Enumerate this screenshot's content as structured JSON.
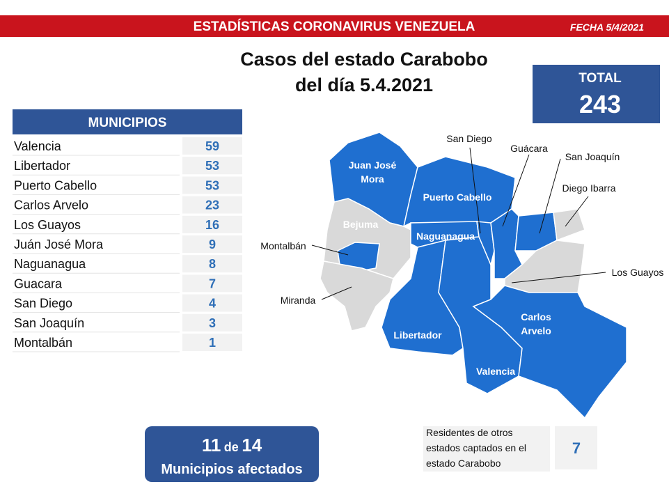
{
  "header": {
    "title": "ESTADÍSTICAS CORONAVIRUS VENEZUELA",
    "date": "FECHA 5/4/2021"
  },
  "heading": [
    "Casos del estado Carabobo",
    "del día 5.4.2021"
  ],
  "total": {
    "label": "TOTAL",
    "value": 243
  },
  "table": {
    "header": "MUNICIPIOS",
    "rows": [
      [
        "Valencia",
        59
      ],
      [
        "Libertador",
        53
      ],
      [
        "Puerto Cabello",
        53
      ],
      [
        "Carlos Arvelo",
        23
      ],
      [
        "Los Guayos",
        16
      ],
      [
        "Juán José Mora",
        9
      ],
      [
        "Naguanagua",
        8
      ],
      [
        "Guacara",
        7
      ],
      [
        "San Diego",
        4
      ],
      [
        "San Joaquín",
        3
      ],
      [
        "Montalbán",
        1
      ]
    ]
  },
  "map": {
    "labels": [
      {
        "lines": [
          "Juan José",
          "Mora"
        ]
      },
      {
        "lines": [
          "Puerto Cabello"
        ]
      },
      {
        "lines": [
          "Bejuma"
        ]
      },
      {
        "lines": [
          "Naguanagua"
        ]
      },
      {
        "lines": [
          "Montalbán"
        ]
      },
      {
        "lines": [
          "Miranda"
        ]
      },
      {
        "lines": [
          "Libertador"
        ]
      },
      {
        "lines": [
          "Valencia"
        ]
      },
      {
        "lines": [
          "Carlos",
          "Arvelo"
        ]
      },
      {
        "lines": [
          "San Diego"
        ]
      },
      {
        "lines": [
          "Guácara"
        ]
      },
      {
        "lines": [
          "San Joaquín"
        ]
      },
      {
        "lines": [
          "Diego Ibarra"
        ]
      },
      {
        "lines": [
          "Los Guayos"
        ]
      }
    ]
  },
  "affected": {
    "count": 11,
    "of": "de",
    "total": 14,
    "label": "Municipios afectados"
  },
  "residents": {
    "lines": [
      "Residentes de otros",
      "estados captados en el",
      "estado Carabobo"
    ],
    "value": 7
  }
}
